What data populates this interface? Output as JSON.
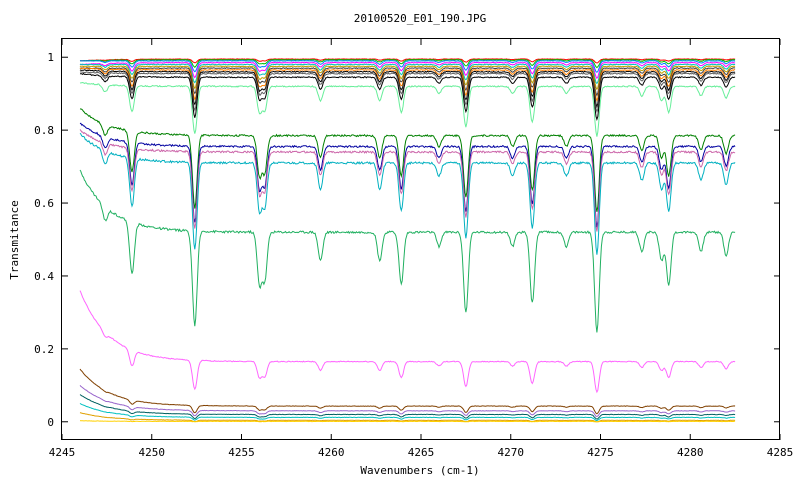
{
  "chart_data": {
    "type": "line",
    "title": "20100520_E01_190.JPG",
    "xlabel": "Wavenumbers (cm-1)",
    "ylabel": "Transmitance",
    "xlim": [
      4245,
      4285
    ],
    "ylim": [
      -0.05,
      1.05
    ],
    "xticks": [
      4245,
      4250,
      4255,
      4260,
      4265,
      4270,
      4275,
      4280,
      4285
    ],
    "xtick_labels": [
      "4245",
      "4250",
      "4255",
      "4260",
      "4265",
      "4270",
      "4275",
      "4280",
      "4285"
    ],
    "yticks": [
      0,
      0.2,
      0.4,
      0.6,
      0.8,
      1
    ],
    "ytick_labels": [
      "0",
      "0.2",
      "0.4",
      "0.6",
      "0.8",
      "1"
    ],
    "grid": false,
    "legend": "none",
    "x_start": 4246,
    "x_end": 4282.5,
    "absorption_lines": [
      {
        "x": 4247.4,
        "depth": 0.15
      },
      {
        "x": 4248.9,
        "depth": 0.55
      },
      {
        "x": 4252.4,
        "depth": 1.0
      },
      {
        "x": 4256.0,
        "depth": 0.55
      },
      {
        "x": 4256.3,
        "depth": 0.5
      },
      {
        "x": 4259.4,
        "depth": 0.3
      },
      {
        "x": 4262.7,
        "depth": 0.3
      },
      {
        "x": 4263.9,
        "depth": 0.55
      },
      {
        "x": 4266.0,
        "depth": 0.15
      },
      {
        "x": 4267.5,
        "depth": 0.85
      },
      {
        "x": 4270.1,
        "depth": 0.15
      },
      {
        "x": 4271.2,
        "depth": 0.75
      },
      {
        "x": 4273.1,
        "depth": 0.15
      },
      {
        "x": 4274.8,
        "depth": 1.05
      },
      {
        "x": 4277.3,
        "depth": 0.2
      },
      {
        "x": 4278.4,
        "depth": 0.3
      },
      {
        "x": 4278.8,
        "depth": 0.55
      },
      {
        "x": 4280.6,
        "depth": 0.2
      },
      {
        "x": 4282.0,
        "depth": 0.25
      }
    ],
    "series": [
      {
        "color": "#ff0000",
        "baseline": 0.995,
        "start": 0.99,
        "strength": 0.01
      },
      {
        "color": "#00c000",
        "baseline": 0.993,
        "start": 0.99,
        "strength": 0.02
      },
      {
        "color": "#0080ff",
        "baseline": 0.99,
        "start": 0.99,
        "strength": 0.03
      },
      {
        "color": "#ff00ff",
        "baseline": 0.985,
        "start": 0.98,
        "strength": 0.04
      },
      {
        "color": "#00c0c0",
        "baseline": 0.98,
        "start": 0.98,
        "strength": 0.05
      },
      {
        "color": "#c0a000",
        "baseline": 0.975,
        "start": 0.975,
        "strength": 0.06
      },
      {
        "color": "#404040",
        "baseline": 0.97,
        "start": 0.97,
        "strength": 0.07
      },
      {
        "color": "#ff8000",
        "baseline": 0.965,
        "start": 0.97,
        "strength": 0.08
      },
      {
        "color": "#000000",
        "baseline": 0.96,
        "start": 0.965,
        "strength": 0.09
      },
      {
        "color": "#606060",
        "baseline": 0.955,
        "start": 0.96,
        "strength": 0.1
      },
      {
        "color": "#000000",
        "baseline": 0.945,
        "start": 0.955,
        "strength": 0.11
      },
      {
        "color": "#66ee99",
        "baseline": 0.92,
        "start": 0.93,
        "strength": 0.13
      },
      {
        "color": "#008000",
        "baseline": 0.785,
        "start": 0.86,
        "strength": 0.2
      },
      {
        "color": "#0000a0",
        "baseline": 0.755,
        "start": 0.82,
        "strength": 0.21
      },
      {
        "color": "#cc66aa",
        "baseline": 0.74,
        "start": 0.8,
        "strength": 0.21
      },
      {
        "color": "#00b0c0",
        "baseline": 0.71,
        "start": 0.79,
        "strength": 0.24
      },
      {
        "color": "#20b060",
        "baseline": 0.52,
        "start": 0.69,
        "strength": 0.26
      },
      {
        "color": "#ff66ff",
        "baseline": 0.165,
        "start": 0.36,
        "strength": 0.08
      },
      {
        "color": "#804000",
        "baseline": 0.043,
        "start": 0.145,
        "strength": 0.02
      },
      {
        "color": "#9966cc",
        "baseline": 0.03,
        "start": 0.1,
        "strength": 0.015
      },
      {
        "color": "#006060",
        "baseline": 0.02,
        "start": 0.075,
        "strength": 0.012
      },
      {
        "color": "#00c0c0",
        "baseline": 0.012,
        "start": 0.05,
        "strength": 0.008
      },
      {
        "color": "#e0a000",
        "baseline": 0.004,
        "start": 0.025,
        "strength": 0.004
      },
      {
        "color": "#ffd000",
        "baseline": 0.001,
        "start": 0.003,
        "strength": 0.001
      }
    ]
  }
}
